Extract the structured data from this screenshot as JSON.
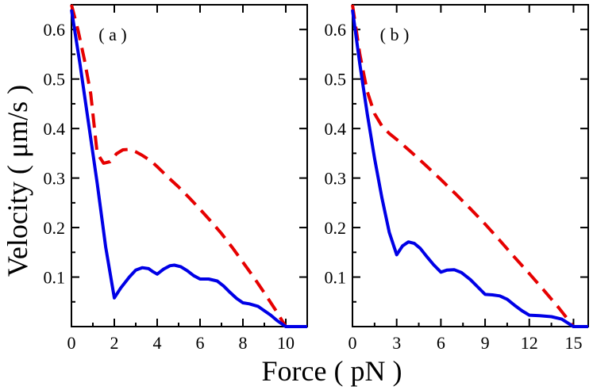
{
  "chart_data": [
    {
      "type": "line",
      "panel_label": "( a )",
      "xlim": [
        0,
        11
      ],
      "ylim": [
        0,
        0.65
      ],
      "xticks": [
        0,
        2,
        4,
        6,
        8,
        10
      ],
      "yticks": [
        0.1,
        0.2,
        0.3,
        0.4,
        0.5,
        0.6
      ],
      "series": [
        {
          "name": "solid",
          "style": "solid",
          "color": "#0000e6",
          "x": [
            0,
            0.4,
            0.8,
            1.2,
            1.6,
            2.0,
            2.3,
            2.7,
            3.0,
            3.3,
            3.6,
            3.8,
            4.0,
            4.3,
            4.6,
            4.8,
            5.1,
            5.4,
            5.7,
            6.0,
            6.4,
            6.8,
            7.1,
            7.4,
            7.7,
            8.0,
            8.3,
            8.7,
            9.0,
            9.3,
            9.6,
            10.0,
            10.4,
            11.0
          ],
          "y": [
            0.64,
            0.53,
            0.41,
            0.29,
            0.16,
            0.058,
            0.078,
            0.1,
            0.114,
            0.119,
            0.117,
            0.111,
            0.106,
            0.116,
            0.123,
            0.124,
            0.121,
            0.113,
            0.103,
            0.096,
            0.096,
            0.092,
            0.082,
            0.069,
            0.057,
            0.048,
            0.046,
            0.041,
            0.032,
            0.023,
            0.012,
            0.0,
            0.0,
            0.0
          ]
        },
        {
          "name": "dashed",
          "style": "dashed",
          "color": "#e60000",
          "x": [
            0,
            0.3,
            0.6,
            0.9,
            1.2,
            1.5,
            1.8,
            2.1,
            2.4,
            2.7,
            3.0,
            3.3,
            3.7,
            4.0,
            4.5,
            5.0,
            5.5,
            6.0,
            6.5,
            7.0,
            7.5,
            8.0,
            8.5,
            9.0,
            9.5,
            10.0,
            10.4,
            11.0
          ],
          "y": [
            0.65,
            0.6,
            0.54,
            0.47,
            0.35,
            0.33,
            0.333,
            0.349,
            0.357,
            0.358,
            0.353,
            0.346,
            0.335,
            0.323,
            0.302,
            0.282,
            0.26,
            0.237,
            0.213,
            0.188,
            0.16,
            0.13,
            0.1,
            0.068,
            0.035,
            0.0,
            0.0,
            0.0
          ]
        }
      ]
    },
    {
      "type": "line",
      "panel_label": "( b )",
      "xlim": [
        0,
        16
      ],
      "ylim": [
        0,
        0.65
      ],
      "xticks": [
        0,
        3,
        6,
        9,
        12,
        15
      ],
      "yticks": [
        0.1,
        0.2,
        0.3,
        0.4,
        0.5,
        0.6
      ],
      "series": [
        {
          "name": "solid",
          "style": "solid",
          "color": "#0000e6",
          "x": [
            0,
            0.5,
            1.0,
            1.5,
            2.0,
            2.5,
            3.0,
            3.4,
            3.8,
            4.2,
            4.6,
            5.0,
            5.5,
            6.0,
            6.4,
            6.9,
            7.4,
            8.0,
            8.5,
            9.0,
            9.5,
            10.0,
            10.5,
            11.0,
            11.5,
            12.0,
            12.7,
            13.5,
            14.2,
            15.0,
            15.5,
            16.0
          ],
          "y": [
            0.64,
            0.53,
            0.43,
            0.34,
            0.26,
            0.19,
            0.145,
            0.163,
            0.171,
            0.168,
            0.158,
            0.143,
            0.125,
            0.11,
            0.114,
            0.115,
            0.109,
            0.095,
            0.08,
            0.065,
            0.064,
            0.062,
            0.055,
            0.043,
            0.032,
            0.023,
            0.022,
            0.02,
            0.015,
            0.0,
            0.0,
            0.0
          ]
        },
        {
          "name": "dashed",
          "style": "dashed",
          "color": "#e60000",
          "x": [
            0,
            0.5,
            1.0,
            1.5,
            2.0,
            2.5,
            3.0,
            4.0,
            5.0,
            6.0,
            7.0,
            8.0,
            9.0,
            10.0,
            11.0,
            12.0,
            13.0,
            14.0,
            15.0,
            15.5,
            16.0
          ],
          "y": [
            0.65,
            0.55,
            0.475,
            0.43,
            0.405,
            0.39,
            0.378,
            0.352,
            0.325,
            0.297,
            0.268,
            0.238,
            0.207,
            0.174,
            0.14,
            0.107,
            0.073,
            0.038,
            0.0,
            0.0,
            0.0
          ]
        }
      ]
    }
  ],
  "shared": {
    "xlabel": "Force ( pN )",
    "ylabel": "Velocity ( μm/s )"
  }
}
